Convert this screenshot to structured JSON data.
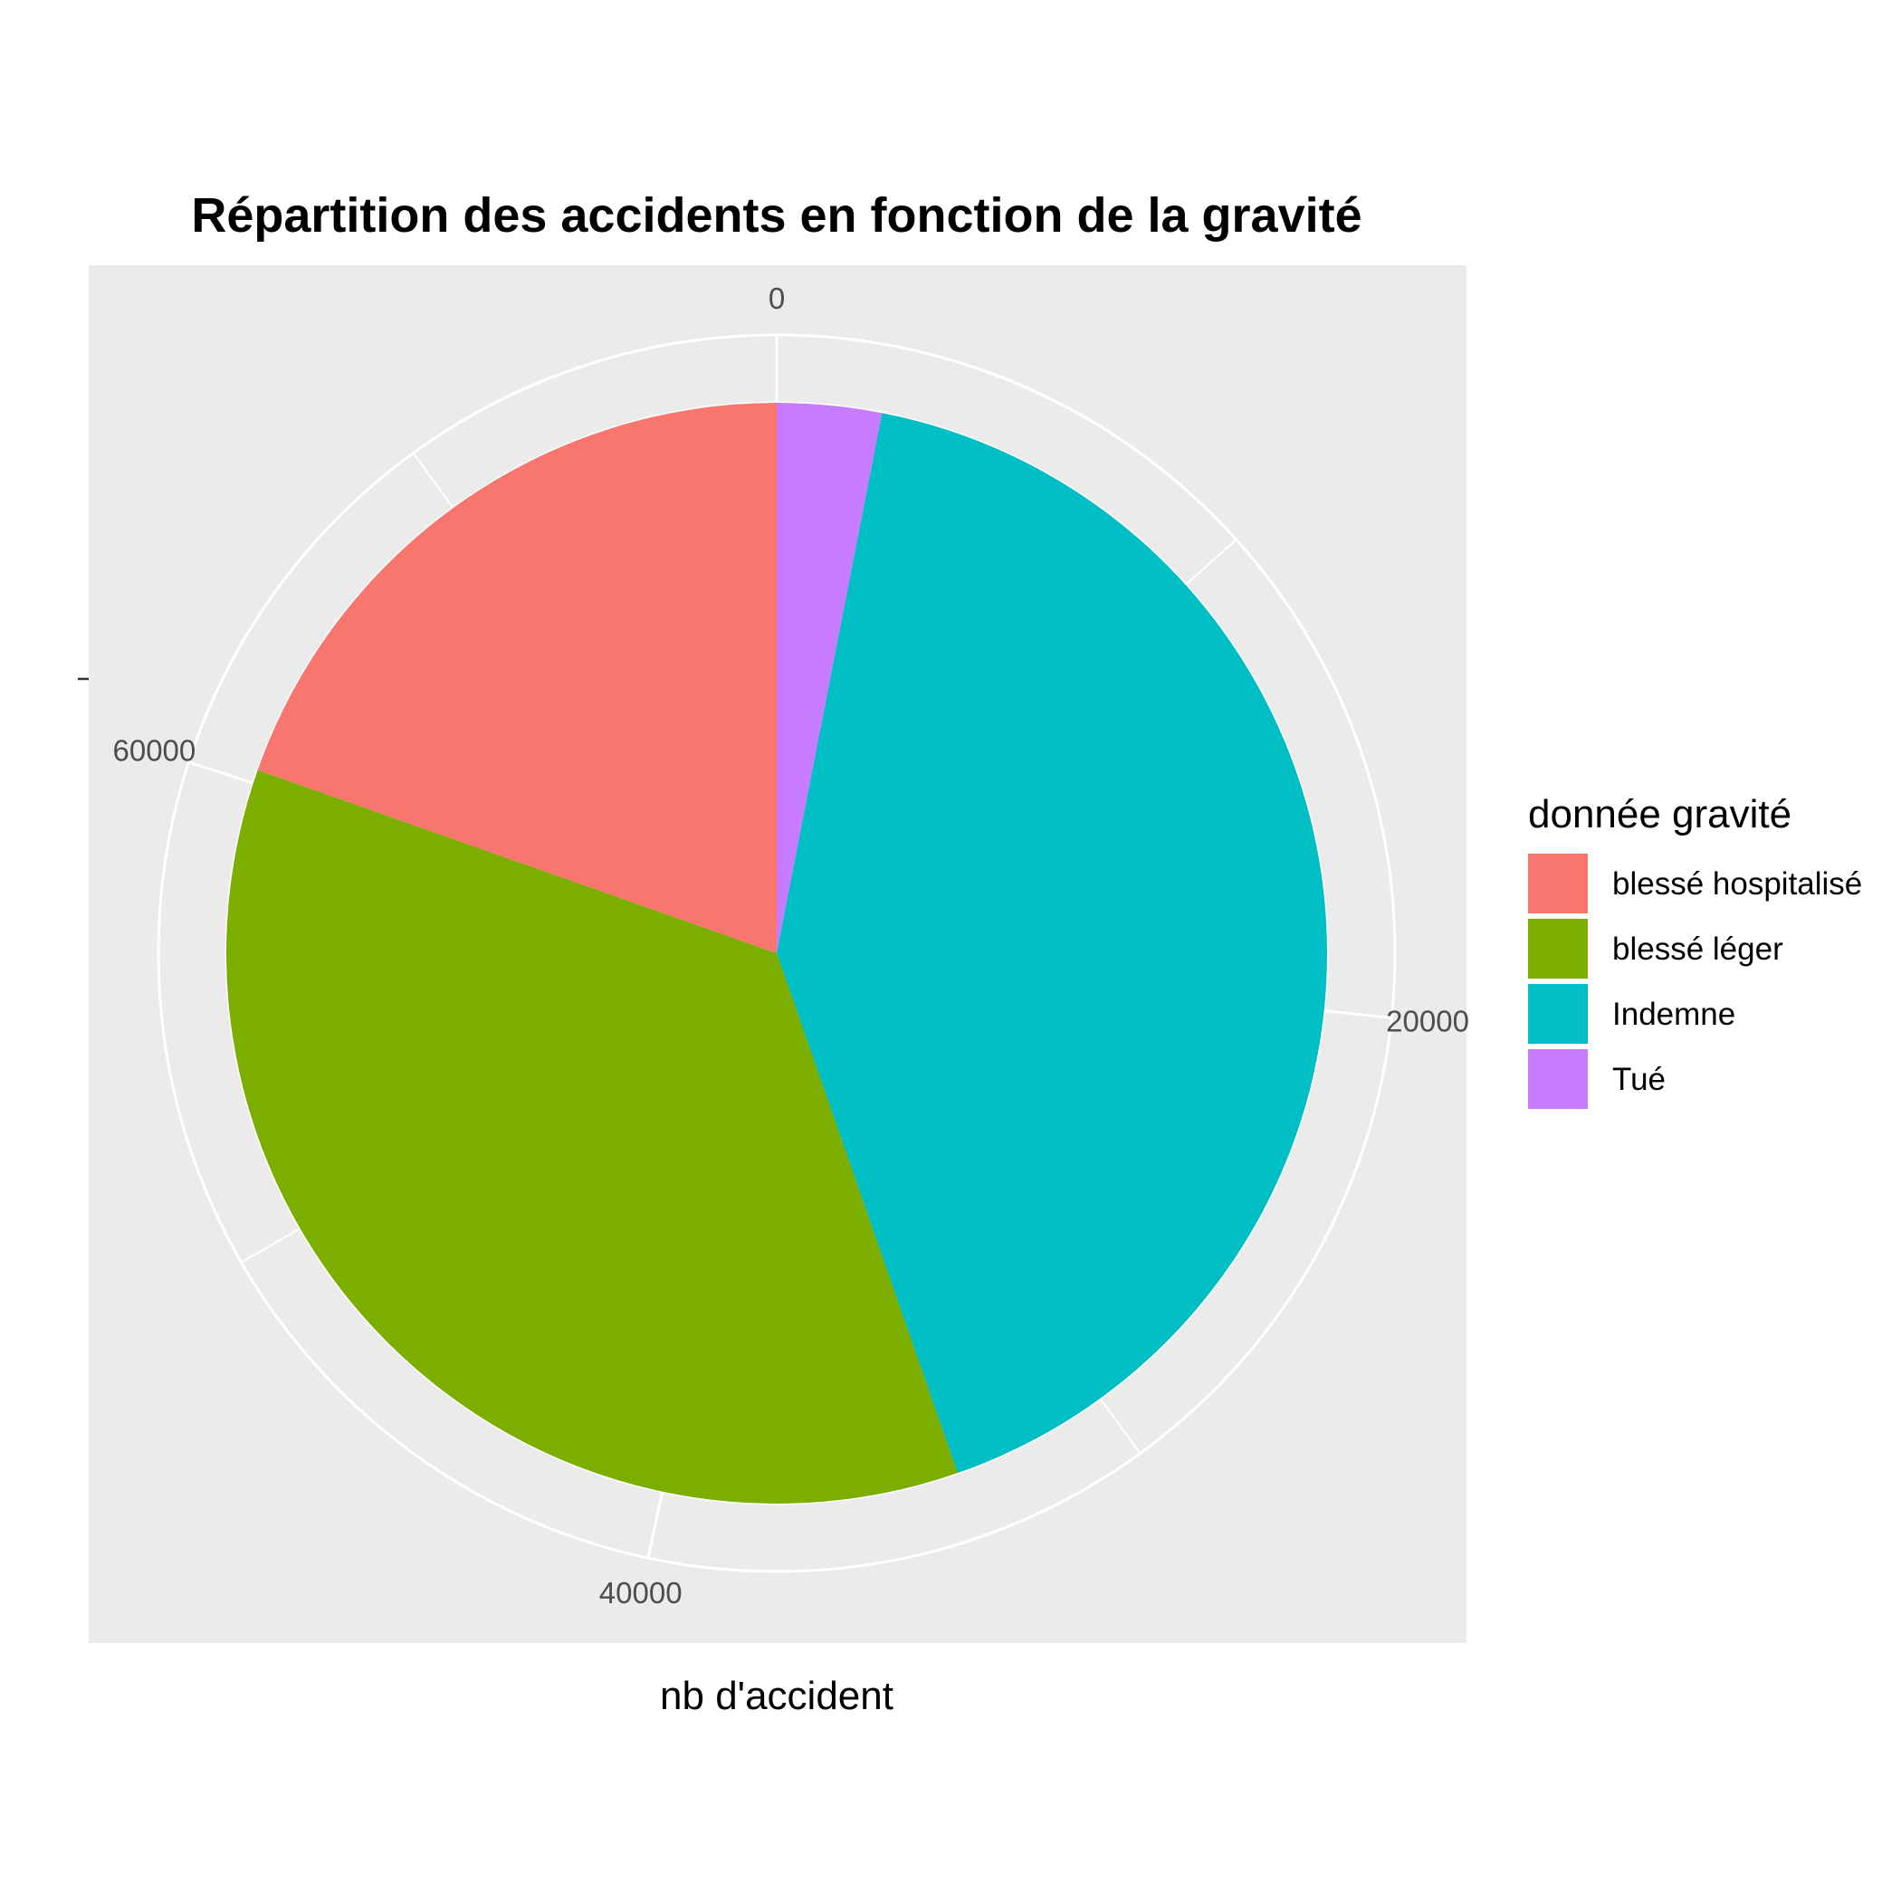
{
  "chart_data": {
    "type": "pie",
    "title": "Répartition des accidents en fonction de la gravité",
    "xlabel": "nb d'accident",
    "ylabel": "",
    "legend_title": "donnée gravité",
    "legend_position": "right",
    "grid": true,
    "background_color": "#EBEBEB",
    "grid_color": "#FFFFFF",
    "axis_range": [
      0,
      75000
    ],
    "radial_ticks": [
      {
        "value": 0,
        "label": "0"
      },
      {
        "value": 20000,
        "label": "20000"
      },
      {
        "value": 40000,
        "label": "40000"
      },
      {
        "value": 60000,
        "label": "60000"
      }
    ],
    "series": [
      {
        "name": "Tué",
        "value": 2300,
        "color": "#C77CFF"
      },
      {
        "name": "Indemne",
        "value": 31200,
        "color": "#00BFC4"
      },
      {
        "name": "blessé léger",
        "value": 26800,
        "color": "#7CAE00"
      },
      {
        "name": "blessé hospitalisé",
        "value": 14700,
        "color": "#F8766D"
      }
    ],
    "legend": [
      {
        "label": "blessé hospitalisé",
        "color": "#F8766D"
      },
      {
        "label": "blessé léger",
        "color": "#7CAE00"
      },
      {
        "label": "Indemne",
        "color": "#00BFC4"
      },
      {
        "label": "Tué",
        "color": "#C77CFF"
      }
    ]
  }
}
